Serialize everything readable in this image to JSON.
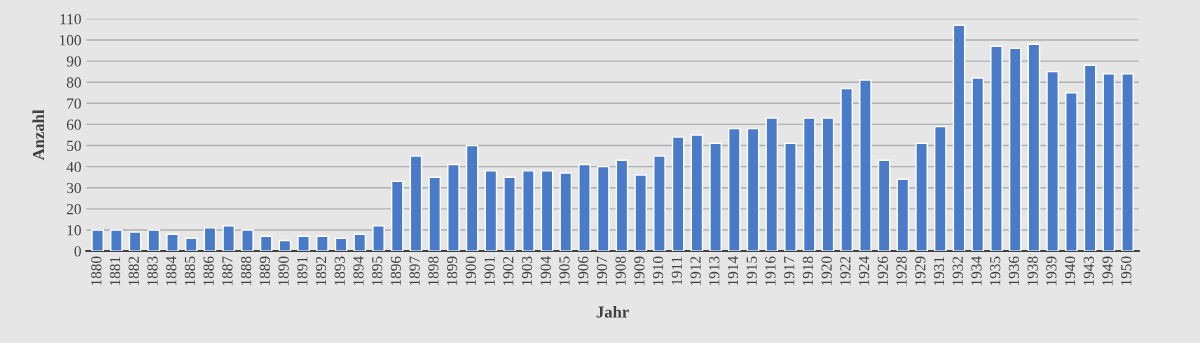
{
  "chart_data": {
    "type": "bar",
    "xlabel": "Jahr",
    "ylabel": "Anzahl",
    "categories": [
      "1880",
      "1881",
      "1882",
      "1883",
      "1884",
      "1885",
      "1886",
      "1887",
      "1888",
      "1889",
      "1890",
      "1891",
      "1892",
      "1893",
      "1894",
      "1895",
      "1896",
      "1897",
      "1898",
      "1899",
      "1900",
      "1901",
      "1902",
      "1903",
      "1904",
      "1905",
      "1906",
      "1907",
      "1908",
      "1909",
      "1910",
      "1911",
      "1912",
      "1913",
      "1914",
      "1915",
      "1916",
      "1917",
      "1918",
      "1920",
      "1922",
      "1924",
      "1926",
      "1928",
      "1929",
      "1931",
      "1932",
      "1934",
      "1935",
      "1936",
      "1938",
      "1939",
      "1940",
      "1943",
      "1949",
      "1950"
    ],
    "values": [
      10,
      10,
      9,
      10,
      8,
      6,
      11,
      12,
      10,
      7,
      5,
      7,
      7,
      6,
      8,
      12,
      33,
      45,
      35,
      41,
      50,
      38,
      35,
      38,
      38,
      37,
      41,
      40,
      43,
      36,
      45,
      54,
      55,
      51,
      58,
      58,
      63,
      51,
      63,
      63,
      77,
      81,
      43,
      34,
      51,
      59,
      107,
      82,
      97,
      96,
      98,
      85,
      75,
      88,
      84,
      84
    ],
    "color": "#4a7bc8",
    "ylim": [
      0,
      110
    ],
    "yticks": [
      0,
      10,
      20,
      30,
      40,
      50,
      60,
      70,
      80,
      90,
      100,
      110
    ],
    "grid": "y",
    "legend": false
  }
}
